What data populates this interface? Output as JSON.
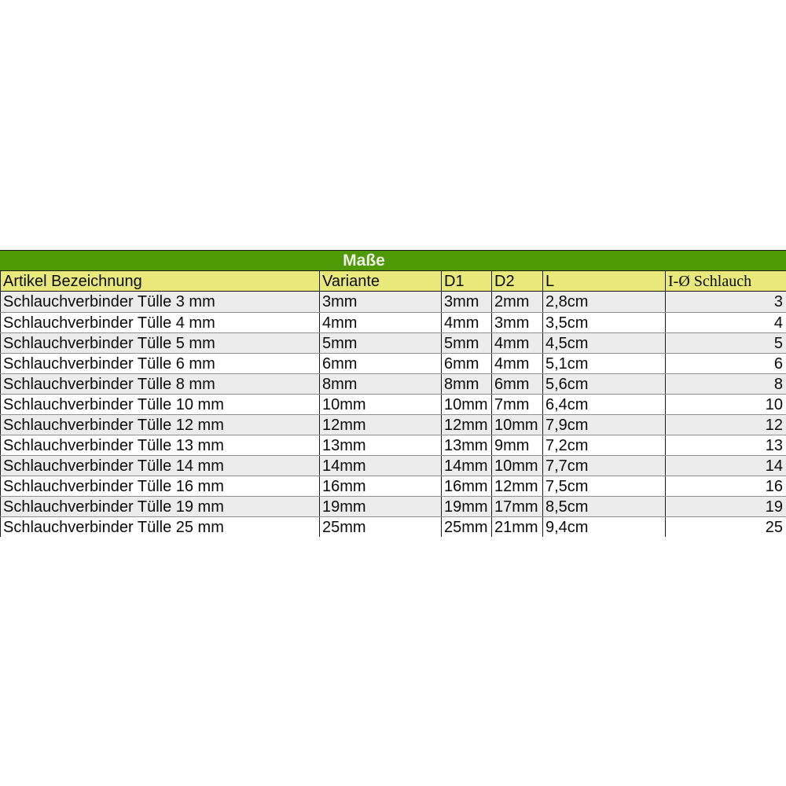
{
  "table": {
    "title": "Maße",
    "columns": [
      "Artikel Bezeichnung",
      "Variante",
      "D1",
      "D2",
      "L",
      "I-Ø Schlauch"
    ],
    "rows": [
      {
        "artikel": "Schlauchverbinder Tülle 3 mm",
        "variante": "3mm",
        "d1": "3mm",
        "d2": "2mm",
        "l": "2,8cm",
        "schlauch": "3"
      },
      {
        "artikel": "Schlauchverbinder Tülle 4 mm",
        "variante": "4mm",
        "d1": "4mm",
        "d2": "3mm",
        "l": "3,5cm",
        "schlauch": "4"
      },
      {
        "artikel": "Schlauchverbinder Tülle 5 mm",
        "variante": "5mm",
        "d1": "5mm",
        "d2": "4mm",
        "l": "4,5cm",
        "schlauch": "5"
      },
      {
        "artikel": "Schlauchverbinder Tülle 6 mm",
        "variante": "6mm",
        "d1": "6mm",
        "d2": "4mm",
        "l": "5,1cm",
        "schlauch": "6"
      },
      {
        "artikel": "Schlauchverbinder Tülle 8 mm",
        "variante": "8mm",
        "d1": "8mm",
        "d2": "6mm",
        "l": "5,6cm",
        "schlauch": "8"
      },
      {
        "artikel": "Schlauchverbinder Tülle 10 mm",
        "variante": "10mm",
        "d1": "10mm",
        "d2": "7mm",
        "l": "6,4cm",
        "schlauch": "10"
      },
      {
        "artikel": "Schlauchverbinder Tülle 12 mm",
        "variante": "12mm",
        "d1": "12mm",
        "d2": "10mm",
        "l": "7,9cm",
        "schlauch": "12"
      },
      {
        "artikel": "Schlauchverbinder Tülle 13 mm",
        "variante": "13mm",
        "d1": "13mm",
        "d2": "9mm",
        "l": "7,2cm",
        "schlauch": "13"
      },
      {
        "artikel": "Schlauchverbinder Tülle 14 mm",
        "variante": "14mm",
        "d1": "14mm",
        "d2": "10mm",
        "l": "7,7cm",
        "schlauch": "14"
      },
      {
        "artikel": "Schlauchverbinder Tülle 16 mm",
        "variante": "16mm",
        "d1": "16mm",
        "d2": "12mm",
        "l": "7,5cm",
        "schlauch": "16"
      },
      {
        "artikel": "Schlauchverbinder Tülle 19 mm",
        "variante": "19mm",
        "d1": "19mm",
        "d2": "17mm",
        "l": "8,5cm",
        "schlauch": "19"
      },
      {
        "artikel": "Schlauchverbinder Tülle 25 mm",
        "variante": "25mm",
        "d1": "25mm",
        "d2": "21mm",
        "l": "9,4cm",
        "schlauch": "25"
      }
    ]
  },
  "colors": {
    "title-bg": "#4e9a06",
    "title-text": "#f0efe7",
    "header-bg": "#e9e97b",
    "row-bg": "#ffffff",
    "row-alt-bg": "#ececec",
    "border-dark": "#1c1c1c",
    "border-light": "#919191",
    "text": "#0a0a0a"
  }
}
